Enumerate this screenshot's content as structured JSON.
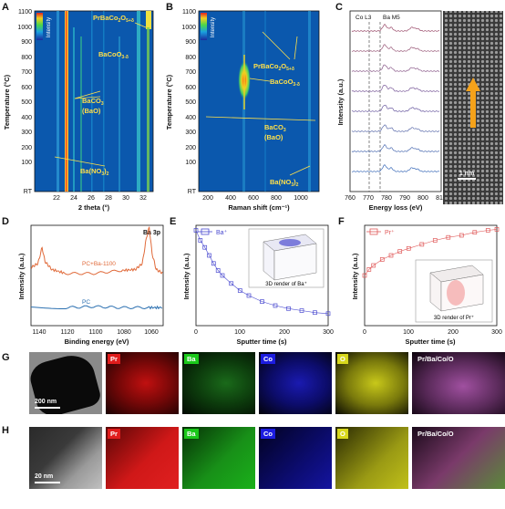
{
  "panels": {
    "A": {
      "label": "A",
      "ylabel": "Temperature (°C)",
      "xlabel": "2 theta (°)",
      "yticks": [
        "1100",
        "1000",
        "900",
        "800",
        "700",
        "600",
        "500",
        "400",
        "300",
        "200",
        "100",
        "RT"
      ],
      "xticks": [
        "22",
        "24",
        "26",
        "28",
        "30",
        "32"
      ],
      "colorbar": "Intensity",
      "ann_prbaco": "PrBaCo",
      "ann_prbaco_sub": "2",
      "ann_prbaco_o": "O",
      "ann_prbaco_osub": "5+δ",
      "ann_baco": "BaCoO",
      "ann_baco_sub": "3-δ",
      "ann_baco3": "BaCO",
      "ann_baco3_sub": "3",
      "ann_bao": "(BaO)",
      "ann_bano": "Ba(NO",
      "ann_bano_sub": "3",
      "ann_bano_end": ")",
      "ann_bano_sub2": "2"
    },
    "B": {
      "label": "B",
      "ylabel": "Temperature (°C)",
      "xlabel": "Raman shift (cm⁻¹)",
      "yticks": [
        "1100",
        "1000",
        "900",
        "800",
        "700",
        "600",
        "500",
        "400",
        "300",
        "200",
        "100",
        "RT"
      ],
      "xticks": [
        "200",
        "400",
        "600",
        "800",
        "1000"
      ],
      "colorbar": "Intensity",
      "ann_prbaco": "PrBaCo",
      "ann_prbaco_sub": "2",
      "ann_prbaco_o": "O",
      "ann_prbaco_osub": "5+δ",
      "ann_baco": "BaCoO",
      "ann_baco_sub": "3-δ",
      "ann_baco3": "BaCO",
      "ann_baco3_sub": "3",
      "ann_bao": "(BaO)",
      "ann_bano": "Ba(NO",
      "ann_bano_sub": "3",
      "ann_bano_end": ")",
      "ann_bano_sub2": "2"
    },
    "C": {
      "label": "C",
      "ylabel": "Intensity (a.u.)",
      "xlabel": "Energy loss (eV)",
      "xticks": [
        "760",
        "770",
        "780",
        "790",
        "800",
        "810"
      ],
      "edge1": "Co L3",
      "edge2": "Ba M5",
      "scale": "1 nm"
    },
    "D": {
      "label": "D",
      "ylabel": "Intensity (a.u.)",
      "xlabel": "Binding energy (eV)",
      "xticks": [
        "1140",
        "1120",
        "1100",
        "1080",
        "1060"
      ],
      "title": "Ba 3p",
      "s1": "PC+Ba-1100",
      "s2": "PC"
    },
    "E": {
      "label": "E",
      "ylabel": "Intensity (a.u.)",
      "xlabel": "Sputter time (s)",
      "xticks": [
        "0",
        "100",
        "200",
        "300"
      ],
      "legend": "Ba⁺",
      "render": "3D render of Ba⁺"
    },
    "F": {
      "label": "F",
      "ylabel": "Intensity (a.u.)",
      "xlabel": "Sputter time (s)",
      "xticks": [
        "0",
        "100",
        "200",
        "300"
      ],
      "legend": "Pr⁺",
      "render": "3D render of Pr⁺"
    },
    "G": {
      "label": "G",
      "scale": "200 nm",
      "maps": [
        "Pr",
        "Ba",
        "Co",
        "O",
        "Pr/Ba/Co/O"
      ]
    },
    "H": {
      "label": "H",
      "scale": "20 nm",
      "maps": [
        "Pr",
        "Ba",
        "Co",
        "O",
        "Pr/Ba/Co/O"
      ]
    }
  },
  "colors": {
    "pc_ba": "#e06a3a",
    "pc": "#2a6fb0",
    "ba_plus": "#4a4ad0",
    "pr_plus": "#e05a5a",
    "pr": "#e01c1c",
    "ba": "#1ac81a",
    "co": "#1c1ce0",
    "o": "#d8d81c",
    "merge": "#c850c8"
  },
  "chart_data": [
    {
      "type": "line",
      "panel": "D",
      "title": "Ba 3p",
      "xlabel": "Binding energy (eV)",
      "ylabel": "Intensity (a.u.)",
      "xlim": [
        1145,
        1050
      ],
      "series": [
        {
          "name": "PC+Ba-1100",
          "x": [
            1145,
            1140,
            1137,
            1135,
            1130,
            1120,
            1100,
            1080,
            1070,
            1065,
            1062,
            1060,
            1058,
            1055,
            1050
          ],
          "y": [
            0.58,
            0.62,
            0.78,
            0.64,
            0.56,
            0.52,
            0.52,
            0.55,
            0.56,
            0.62,
            0.88,
            0.98,
            0.72,
            0.56,
            0.52
          ]
        },
        {
          "name": "PC",
          "x": [
            1145,
            1120,
            1100,
            1080,
            1060,
            1050
          ],
          "y": [
            0.18,
            0.18,
            0.19,
            0.18,
            0.18,
            0.18
          ]
        }
      ]
    },
    {
      "type": "scatter",
      "panel": "E",
      "xlabel": "Sputter time (s)",
      "ylabel": "Intensity (a.u.)",
      "xlim": [
        0,
        300
      ],
      "series": [
        {
          "name": "Ba⁺",
          "x": [
            0,
            10,
            20,
            30,
            40,
            50,
            60,
            80,
            100,
            120,
            150,
            180,
            210,
            240,
            270,
            300
          ],
          "y": [
            0.95,
            0.85,
            0.78,
            0.7,
            0.62,
            0.55,
            0.5,
            0.42,
            0.35,
            0.3,
            0.24,
            0.2,
            0.17,
            0.15,
            0.13,
            0.12
          ]
        }
      ]
    },
    {
      "type": "scatter",
      "panel": "F",
      "xlabel": "Sputter time (s)",
      "ylabel": "Intensity (a.u.)",
      "xlim": [
        0,
        300
      ],
      "series": [
        {
          "name": "Pr⁺",
          "x": [
            0,
            10,
            20,
            40,
            60,
            80,
            100,
            130,
            160,
            190,
            220,
            250,
            280,
            300
          ],
          "y": [
            0.5,
            0.56,
            0.6,
            0.66,
            0.7,
            0.74,
            0.77,
            0.81,
            0.85,
            0.88,
            0.9,
            0.93,
            0.95,
            0.96
          ]
        }
      ]
    }
  ]
}
